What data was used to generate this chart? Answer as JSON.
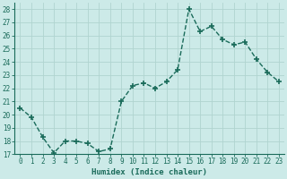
{
  "x": [
    0,
    1,
    2,
    3,
    4,
    5,
    6,
    7,
    8,
    9,
    10,
    11,
    12,
    13,
    14,
    15,
    16,
    17,
    18,
    19,
    20,
    21,
    22,
    23
  ],
  "y": [
    20.5,
    19.8,
    18.3,
    17.1,
    18.0,
    18.0,
    17.8,
    17.2,
    17.4,
    21.0,
    22.2,
    22.4,
    22.0,
    22.5,
    23.4,
    28.0,
    26.3,
    26.7,
    25.7,
    25.3,
    25.5,
    24.2,
    23.2,
    22.5
  ],
  "line_color": "#1a6b5a",
  "marker": "+",
  "marker_size": 4,
  "bg_color": "#cceae8",
  "grid_color": "#b0d4d0",
  "xlabel": "Humidex (Indice chaleur)",
  "ylabel_ticks": [
    17,
    18,
    19,
    20,
    21,
    22,
    23,
    24,
    25,
    26,
    27,
    28
  ],
  "xlim": [
    -0.5,
    23.5
  ],
  "ylim": [
    17,
    28.5
  ],
  "xlabel_fontsize": 6.5,
  "tick_fontsize": 5.5,
  "line_width": 1.0
}
